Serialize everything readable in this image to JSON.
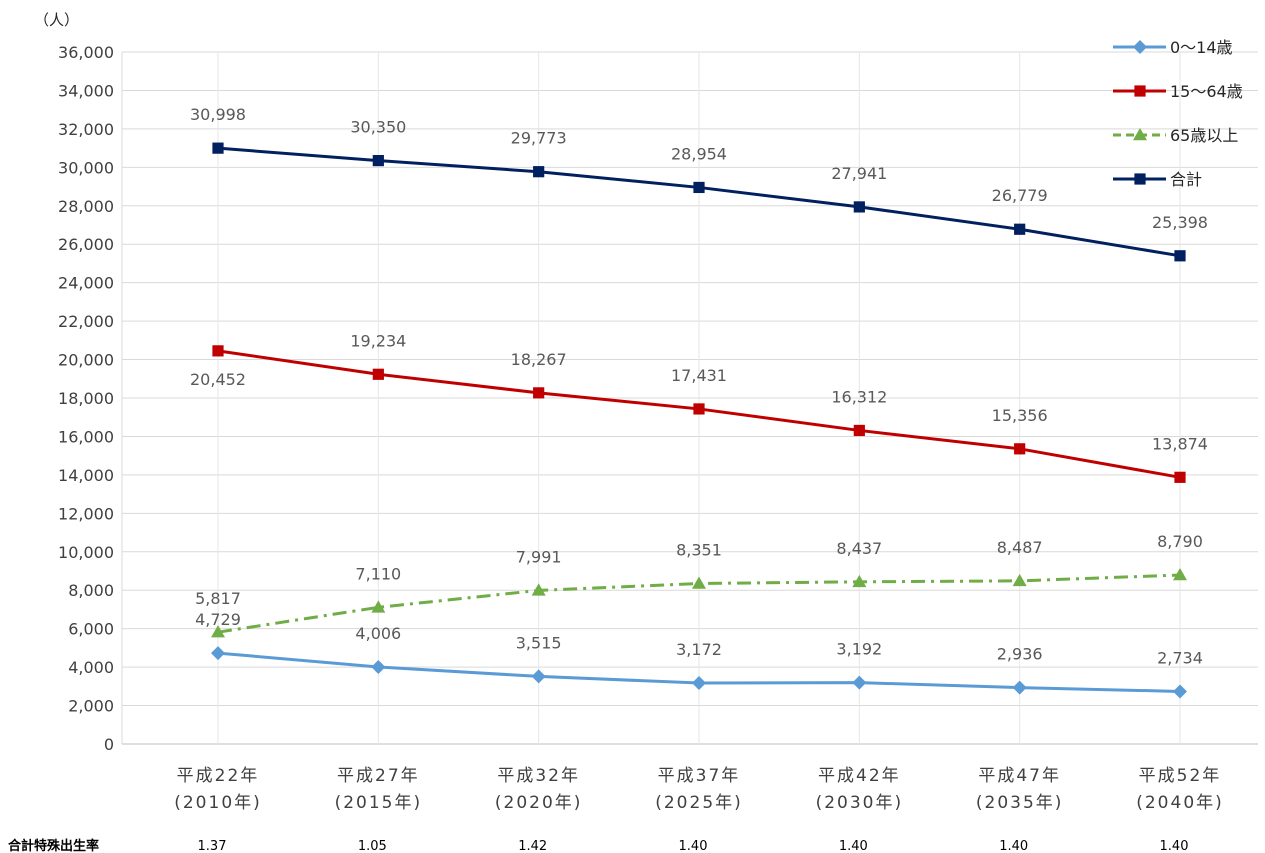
{
  "unit_label": "（人）",
  "fertility": {
    "label": "合計特殊出生率",
    "values": [
      "1.37",
      "1.05",
      "1.42",
      "1.40",
      "1.40",
      "1.40",
      "1.40"
    ]
  },
  "chart_data": {
    "type": "line",
    "title": "",
    "xlabel": "",
    "ylabel": "（人）",
    "ylim": [
      0,
      36000
    ],
    "yticks": [
      0,
      2000,
      4000,
      6000,
      8000,
      10000,
      12000,
      14000,
      16000,
      18000,
      20000,
      22000,
      24000,
      26000,
      28000,
      30000,
      32000,
      34000,
      36000
    ],
    "ytick_labels": [
      "0",
      "2,000",
      "4,000",
      "6,000",
      "8,000",
      "10,000",
      "12,000",
      "14,000",
      "16,000",
      "18,000",
      "20,000",
      "22,000",
      "24,000",
      "26,000",
      "28,000",
      "30,000",
      "32,000",
      "34,000",
      "36,000"
    ],
    "categories": [
      [
        "平成22年",
        "(2010年)"
      ],
      [
        "平成27年",
        "(2015年)"
      ],
      [
        "平成32年",
        "(2020年)"
      ],
      [
        "平成37年",
        "(2025年)"
      ],
      [
        "平成42年",
        "(2030年)"
      ],
      [
        "平成47年",
        "(2035年)"
      ],
      [
        "平成52年",
        "(2040年)"
      ]
    ],
    "grid": "horizontal",
    "legend_position": "top-right",
    "series": [
      {
        "name": "0〜14歳",
        "color": "#5b9bd5",
        "marker": "diamond",
        "dash": "solid",
        "values": [
          4729,
          4006,
          3515,
          3172,
          3192,
          2936,
          2734
        ],
        "labels": [
          "4,729",
          "4,006",
          "3,515",
          "3,172",
          "3,192",
          "2,936",
          "2,734"
        ]
      },
      {
        "name": "15〜64歳",
        "color": "#c00000",
        "marker": "square",
        "dash": "solid",
        "values": [
          20452,
          19234,
          18267,
          17431,
          16312,
          15356,
          13874
        ],
        "labels": [
          "20,452",
          "19,234",
          "18,267",
          "17,431",
          "16,312",
          "15,356",
          "13,874"
        ]
      },
      {
        "name": "65歳以上",
        "color": "#70ad47",
        "marker": "triangle",
        "dash": "dashdot",
        "values": [
          5817,
          7110,
          7991,
          8351,
          8437,
          8487,
          8790
        ],
        "labels": [
          "5,817",
          "7,110",
          "7,991",
          "8,351",
          "8,437",
          "8,487",
          "8,790"
        ]
      },
      {
        "name": "合計",
        "color": "#002060",
        "marker": "square",
        "dash": "solid",
        "values": [
          30998,
          30350,
          29773,
          28954,
          27941,
          26779,
          25398
        ],
        "labels": [
          "30,998",
          "30,350",
          "29,773",
          "28,954",
          "27,941",
          "26,779",
          "25,398"
        ]
      }
    ]
  }
}
